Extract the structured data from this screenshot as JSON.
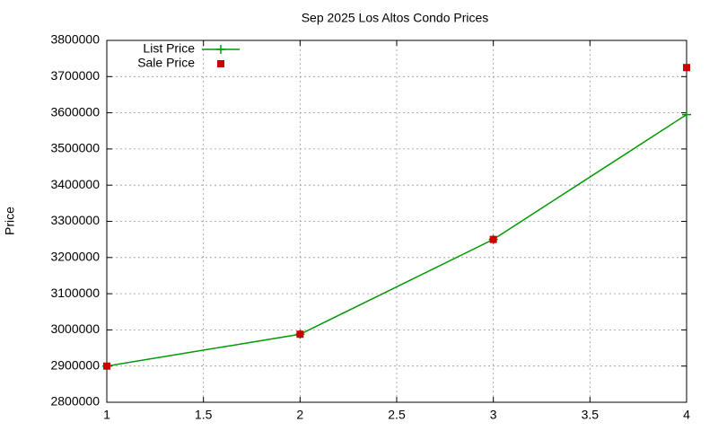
{
  "chart_data": {
    "type": "line",
    "title": "Sep 2025 Los Altos Condo Prices",
    "y_label": "Price",
    "x": [
      1,
      2,
      3,
      4
    ],
    "series": [
      {
        "name": "List Price",
        "color": "#009900",
        "mode": "lines+points",
        "values": [
          2900000,
          2988000,
          3250000,
          3595000
        ]
      },
      {
        "name": "Sale Price",
        "color": "#cc0000",
        "mode": "points",
        "values": [
          2900000,
          2988000,
          3250000,
          3725000
        ]
      }
    ],
    "xlim": [
      1,
      4
    ],
    "xticks": [
      1,
      1.5,
      2,
      2.5,
      3,
      3.5,
      4
    ],
    "ylim": [
      2800000,
      3800000
    ],
    "yticks": [
      2800000,
      2900000,
      3000000,
      3100000,
      3200000,
      3300000,
      3400000,
      3500000,
      3600000,
      3700000,
      3800000
    ],
    "grid": true,
    "legend": "top-left"
  }
}
